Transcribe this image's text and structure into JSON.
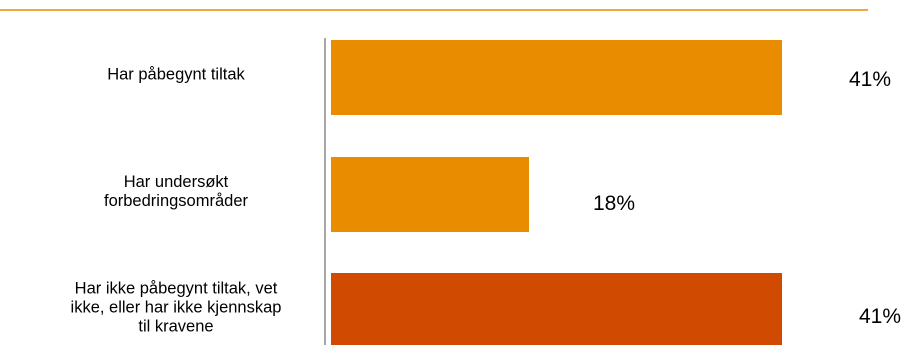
{
  "chart_data": {
    "type": "bar",
    "orientation": "horizontal",
    "categories": [
      [
        "Har påbegynt tiltak"
      ],
      [
        "Har undersøkt",
        "forbedringsområder"
      ],
      [
        "Har ikke påbegynt tiltak, vet",
        "ikke, eller har ikke kjennskap",
        "til kravene"
      ]
    ],
    "values": [
      41,
      18,
      41
    ],
    "value_labels": [
      "41%",
      "18%",
      "41%"
    ],
    "bar_colors": [
      "#E98C00",
      "#E98C00",
      "#D04A02"
    ],
    "title": "",
    "xlabel": "",
    "ylabel": "",
    "xlim": [
      0,
      41
    ],
    "grid": false,
    "legend": "none"
  },
  "colors": {
    "top_rule": "#E98C00",
    "axis": "#8c8c8c"
  }
}
